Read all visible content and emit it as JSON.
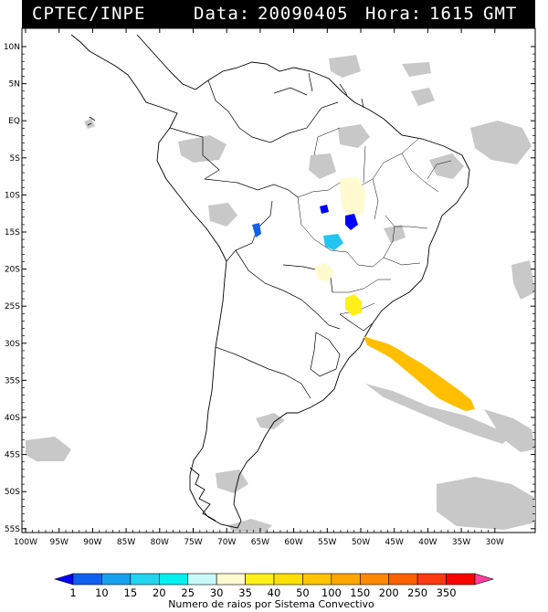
{
  "header": {
    "source": "CPTEC/INPE",
    "date_label": "Data:",
    "date_value": "20090405",
    "time_label": "Hora:",
    "time_value": "1615",
    "tz": "GMT"
  },
  "axes": {
    "lat_labels": [
      "10N",
      "5N",
      "EQ",
      "5S",
      "10S",
      "15S",
      "20S",
      "25S",
      "30S",
      "35S",
      "40S",
      "45S",
      "50S",
      "55S"
    ],
    "lon_labels": [
      "100W",
      "95W",
      "90W",
      "85W",
      "80W",
      "75W",
      "70W",
      "65W",
      "60W",
      "55W",
      "50W",
      "45W",
      "40W",
      "35W",
      "30W"
    ]
  },
  "colorbar": {
    "title": "Numero de raios por Sistema Convectivo",
    "ticks": [
      "1",
      "10",
      "15",
      "20",
      "25",
      "30",
      "35",
      "40",
      "50",
      "100",
      "150",
      "200",
      "250",
      "350"
    ],
    "colors": [
      "#0000ff",
      "#1060f0",
      "#1aa0f0",
      "#22d4f0",
      "#00f0f0",
      "#c8fafa",
      "#fffad0",
      "#fff01a",
      "#ffe000",
      "#ffc400",
      "#ffa600",
      "#ff8800",
      "#ff6000",
      "#ff3a10",
      "#ff0000",
      "#ff40a0"
    ]
  },
  "map_features": {
    "cloud_color": "#c8c8c8",
    "convective_systems": [
      {
        "location": "Atlantic off Uruguay/Buenos Aires",
        "color": "#ffbf00",
        "flash_class": "100-150"
      },
      {
        "location": "Paraná / Santa Catarina",
        "color": "#fff01a",
        "flash_class": "35-40"
      },
      {
        "location": "Mato Grosso do Sul",
        "color": "#fffad0",
        "flash_class": "30-35"
      },
      {
        "location": "Central Brazil (Tocantins)",
        "color": "#fffad0",
        "flash_class": "30-35"
      },
      {
        "location": "Mato Grosso",
        "color": "#22c4f0",
        "flash_class": "15-20"
      },
      {
        "location": "Bolivia",
        "color": "#1060f0",
        "flash_class": "1-10"
      },
      {
        "location": "Goiás",
        "color": "#0000ff",
        "flash_class": "<1"
      }
    ]
  }
}
